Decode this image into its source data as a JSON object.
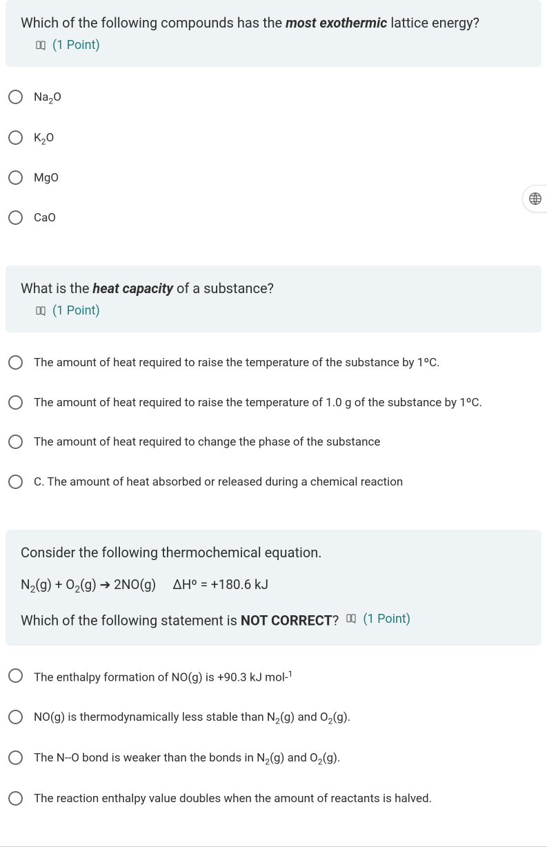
{
  "palette": {
    "header_bg": "#eef3f5",
    "accent": "#277a7a",
    "text": "#2e2e2e",
    "radio_border": "#666666"
  },
  "points_label": "(1 Point)",
  "questions": [
    {
      "prompt_html": "Which of the following compounds has the <span class='emph'>most exothermic</span> lattice energy?",
      "equation_html": "",
      "tail_html": "",
      "points_inline": false,
      "options": [
        "Na<sub>2</sub>O",
        "K<sub>2</sub>O",
        "MgO",
        "CaO"
      ]
    },
    {
      "prompt_html": "What is the <span class='emph'>heat capacity</span> of a substance?",
      "equation_html": "",
      "tail_html": "",
      "points_inline": false,
      "options": [
        "The amount of heat required to raise the temperature of the substance by 1ºC.",
        "The amount of heat required to raise the temperature of 1.0 g of the substance by 1ºC.",
        "The amount of heat required to change the phase of the substance",
        "C. The amount of heat absorbed or released during a chemical reaction"
      ]
    },
    {
      "prompt_html": "Consider the following thermochemical equation.",
      "equation_html": "N<sub>2</sub>(g) + O<sub>2</sub>(g) ➔ 2NO(g)  ΔHº = +180.6 kJ",
      "tail_html": "Which of the following statement is <span class='bold'>NOT CORRECT</span>?",
      "points_inline": true,
      "options": [
        "The enthalpy formation of NO(g) is +90.3 kJ mol-<sup>1</sup>",
        "NO(g) is thermodynamically less stable than N<sub>2</sub>(g) and O<sub>2</sub>(g).",
        "The N--O bond is weaker than the bonds in N<sub>2</sub>(g) and O<sub>2</sub>(g).",
        "The reaction enthalpy value doubles when the amount of reactants is halved."
      ]
    }
  ]
}
